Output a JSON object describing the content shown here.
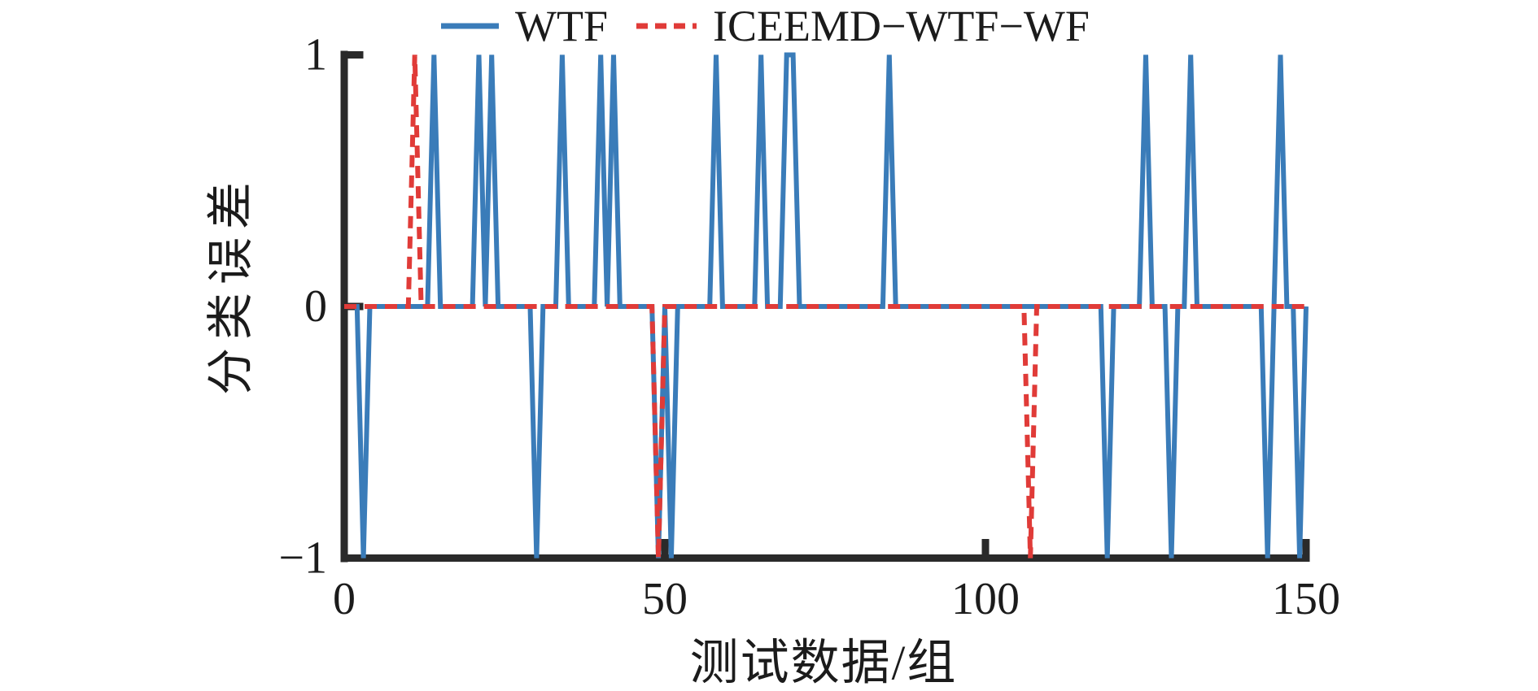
{
  "figure": {
    "background": "#ffffff",
    "axis_color": "#2a2a2a",
    "text_color": "#1b1b1b"
  },
  "chart_data": {
    "type": "line",
    "title": "",
    "xlabel": "测试数据/组",
    "ylabel": "分类误差",
    "xlim": [
      0,
      150
    ],
    "ylim": [
      -1,
      1
    ],
    "grid": false,
    "legend_position": "top",
    "x_ticks": [
      {
        "value": 0,
        "label": "0"
      },
      {
        "value": 50,
        "label": "50"
      },
      {
        "value": 100,
        "label": "100"
      },
      {
        "value": 150,
        "label": "150"
      }
    ],
    "y_ticks": [
      {
        "value": 1,
        "label": "1"
      },
      {
        "value": 0,
        "label": "0"
      },
      {
        "value": -1,
        "label": "−1"
      }
    ],
    "values_note": "Both series equal 0 for every integer x from x_start to x_end except the listed spike positions, which reach +1 or −1 (triangular spikes, linear interpolation between integer points).",
    "series": [
      {
        "name": "WTF",
        "color": "#3A7CB9",
        "style": "solid",
        "line_width": 6,
        "baseline_value": 0,
        "x_start": 0,
        "x_end": 150,
        "spikes_up_plus1": [
          14,
          21,
          23,
          34,
          40,
          42,
          58,
          65,
          69,
          70,
          85,
          125,
          132,
          146
        ],
        "spikes_down_minus1": [
          3,
          30,
          49,
          51,
          119,
          129,
          144,
          149
        ]
      },
      {
        "name": "ICEEMD−WTF−WF",
        "color": "#E03B38",
        "style": "dashed",
        "dash_pattern": [
          15,
          10
        ],
        "line_width": 6,
        "baseline_value": 0,
        "x_start": 0,
        "x_end": 150,
        "spikes_up_plus1": [
          11
        ],
        "spikes_down_minus1": [
          49,
          107
        ]
      }
    ]
  }
}
